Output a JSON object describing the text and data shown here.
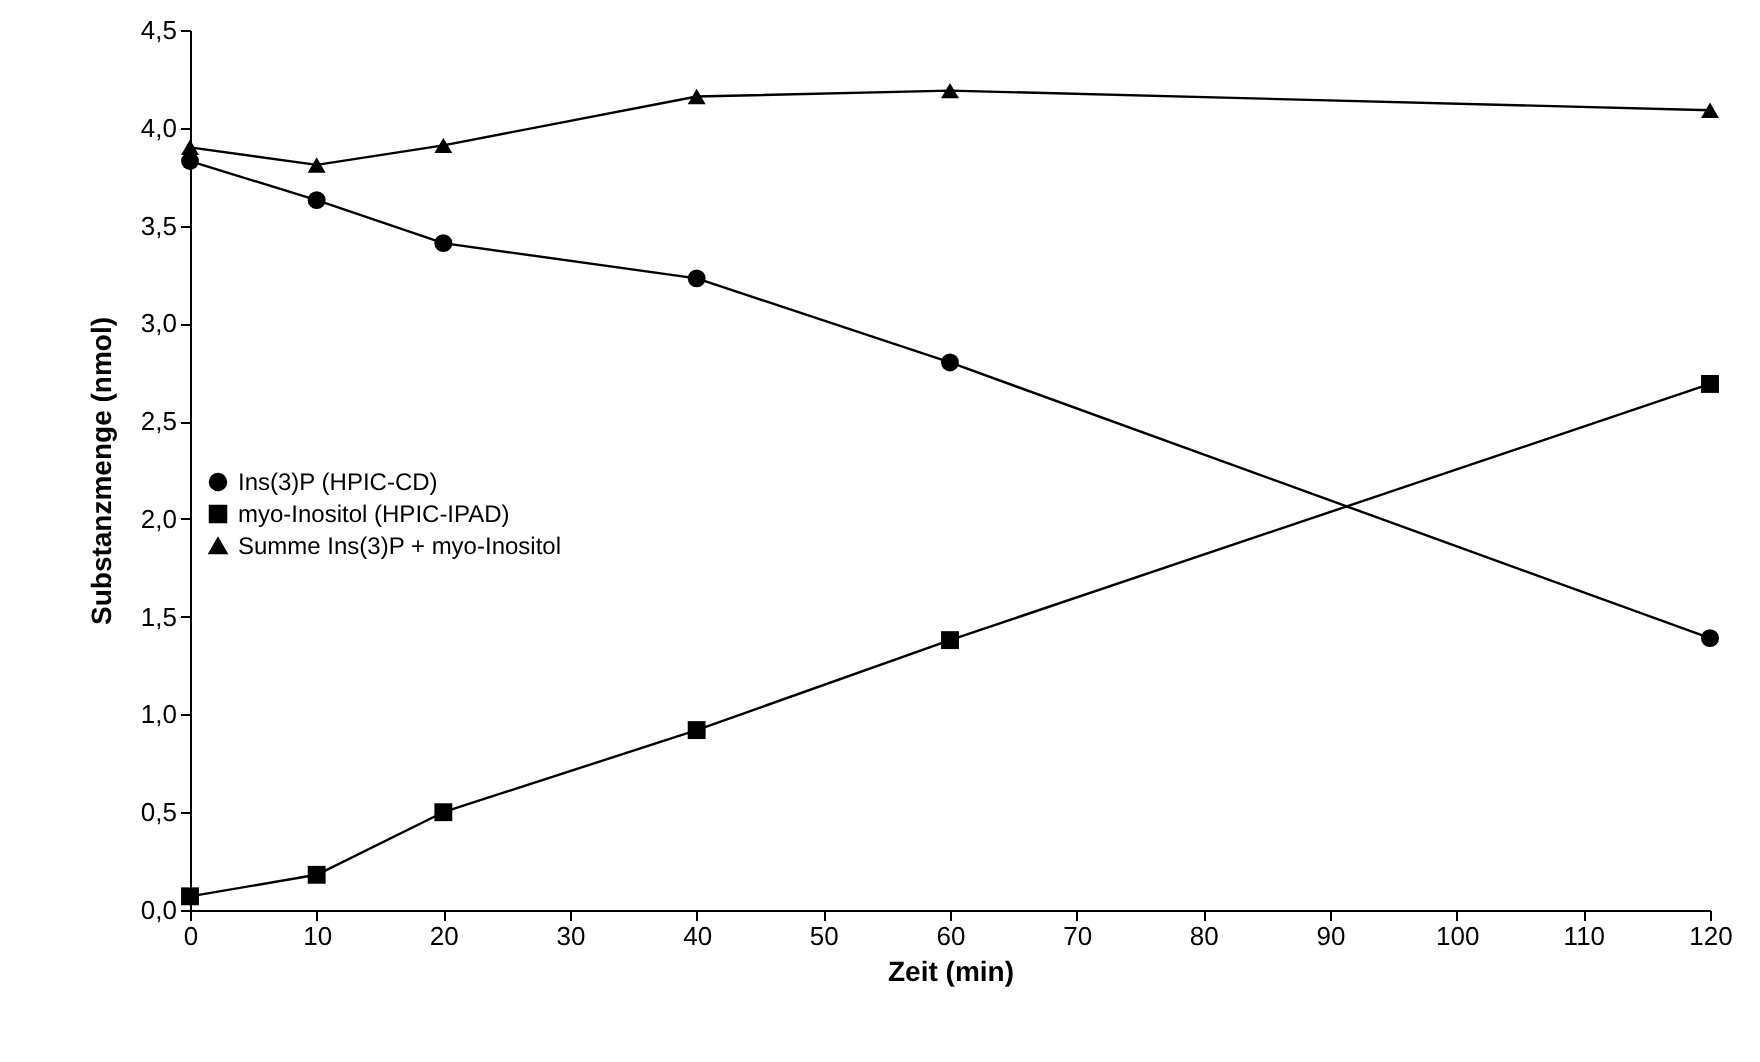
{
  "chart_data": {
    "type": "line",
    "xlabel": "Zeit (min)",
    "ylabel": "Substanzmenge  (nmol)",
    "x": [
      0,
      10,
      20,
      40,
      60,
      120
    ],
    "series": [
      {
        "name": "Ins(3)P (HPIC-CD)",
        "color": "#000000",
        "marker": "circle",
        "values": [
          3.83,
          3.63,
          3.41,
          3.23,
          2.8,
          1.39
        ]
      },
      {
        "name": "myo-Inositol (HPIC-IPAD)",
        "color": "#000000",
        "marker": "square",
        "values": [
          0.07,
          0.18,
          0.5,
          0.92,
          1.38,
          2.69
        ]
      },
      {
        "name": "Summe Ins(3)P + myo-Inositol",
        "color": "#000000",
        "marker": "triangle",
        "values": [
          3.9,
          3.81,
          3.91,
          4.16,
          4.19,
          4.09
        ]
      }
    ],
    "xlim": [
      0,
      120
    ],
    "xticks": [
      0,
      10,
      20,
      30,
      40,
      50,
      60,
      70,
      80,
      90,
      100,
      110,
      120
    ],
    "ylim": [
      0,
      4.5
    ],
    "yticks": [
      {
        "value": 0,
        "label": "0,0"
      },
      {
        "value": 0.5,
        "label": "0,5"
      },
      {
        "value": 1,
        "label": "1,0"
      },
      {
        "value": 1.5,
        "label": "1,5"
      },
      {
        "value": 2,
        "label": "2,0"
      },
      {
        "value": 2.5,
        "label": "2,5"
      },
      {
        "value": 3,
        "label": "3,0"
      },
      {
        "value": 3.5,
        "label": "3,5"
      },
      {
        "value": 4,
        "label": "4,0"
      },
      {
        "value": 4.5,
        "label": "4,5"
      }
    ],
    "grid": false,
    "legend": "left",
    "line_style": "solid"
  }
}
